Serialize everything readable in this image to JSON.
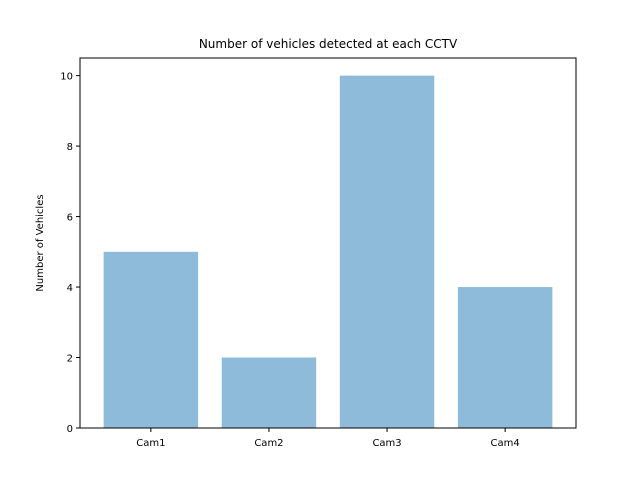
{
  "chart_data": {
    "type": "bar",
    "title": "Number of vehicles detected at each CCTV",
    "xlabel": "",
    "ylabel": "Number of Vehicles",
    "categories": [
      "Cam1",
      "Cam2",
      "Cam3",
      "Cam4"
    ],
    "values": [
      5,
      2,
      10,
      4
    ],
    "ylim": [
      0,
      10.5
    ],
    "yticks": [
      0,
      2,
      4,
      6,
      8,
      10
    ],
    "grid": false,
    "bar_color": "#8fbbda"
  }
}
